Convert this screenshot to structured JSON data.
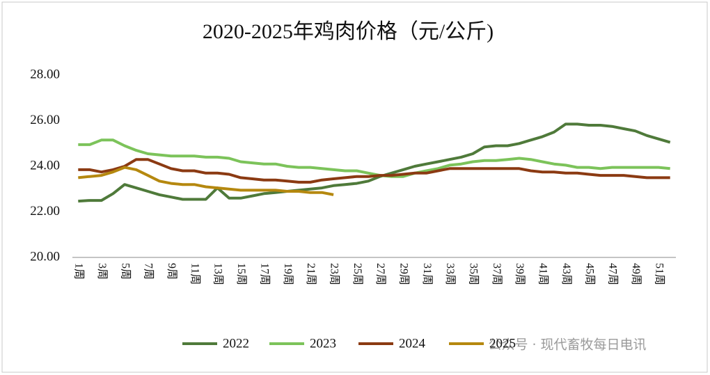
{
  "chart_data": {
    "type": "line",
    "title": "2020-2025年鸡肉价格（元/公斤)",
    "watermark": "公众号 · 现代畜牧每日电讯",
    "categories": [
      "1周",
      null,
      "3周",
      null,
      "5周",
      null,
      "7周",
      null,
      "9周",
      null,
      "11周",
      null,
      "13周",
      null,
      "15周",
      null,
      "17周",
      null,
      "19周",
      null,
      "21周",
      null,
      "23周",
      null,
      "25周",
      null,
      "27周",
      null,
      "29周",
      null,
      "31周",
      null,
      "33周",
      null,
      "35周",
      null,
      "37周",
      null,
      "39周",
      null,
      "41周",
      null,
      "43周",
      null,
      "45周",
      null,
      "47周",
      null,
      "49周",
      null,
      "51周",
      null
    ],
    "ylim": [
      20,
      28
    ],
    "yticks": [
      {
        "value": 20,
        "label": "20.00"
      },
      {
        "value": 22,
        "label": "22.00"
      },
      {
        "value": 24,
        "label": "24.00"
      },
      {
        "value": 26,
        "label": "26.00"
      },
      {
        "value": 28,
        "label": "28.00"
      }
    ],
    "legend": "bottom",
    "series": [
      {
        "name": "2022",
        "color": "#4f7a3a",
        "values": [
          22.47,
          22.5,
          22.5,
          22.8,
          23.2,
          23.05,
          22.9,
          22.75,
          22.65,
          22.55,
          22.55,
          22.55,
          23.05,
          22.6,
          22.6,
          22.7,
          22.8,
          22.85,
          22.9,
          22.95,
          23.0,
          23.05,
          23.15,
          23.2,
          23.25,
          23.35,
          23.55,
          23.7,
          23.85,
          24.0,
          24.1,
          24.2,
          24.3,
          24.4,
          24.55,
          24.85,
          24.9,
          24.9,
          25.0,
          25.15,
          25.3,
          25.5,
          25.85,
          25.85,
          25.8,
          25.8,
          25.75,
          25.65,
          25.55,
          25.35,
          25.2,
          25.05
        ]
      },
      {
        "name": "2023",
        "color": "#7cc35a",
        "values": [
          24.95,
          24.95,
          25.15,
          25.15,
          24.9,
          24.7,
          24.55,
          24.5,
          24.45,
          24.45,
          24.45,
          24.4,
          24.4,
          24.35,
          24.2,
          24.15,
          24.1,
          24.1,
          24.0,
          23.95,
          23.95,
          23.9,
          23.85,
          23.8,
          23.8,
          23.7,
          23.6,
          23.55,
          23.55,
          23.7,
          23.8,
          23.9,
          24.05,
          24.1,
          24.2,
          24.25,
          24.25,
          24.3,
          24.35,
          24.3,
          24.2,
          24.1,
          24.05,
          23.95,
          23.95,
          23.9,
          23.95,
          23.95,
          23.95,
          23.95,
          23.95,
          23.9
        ]
      },
      {
        "name": "2024",
        "color": "#8b3a12",
        "values": [
          23.85,
          23.85,
          23.75,
          23.85,
          24.0,
          24.3,
          24.3,
          24.1,
          23.9,
          23.8,
          23.8,
          23.7,
          23.7,
          23.65,
          23.5,
          23.45,
          23.4,
          23.4,
          23.35,
          23.3,
          23.3,
          23.4,
          23.45,
          23.5,
          23.55,
          23.55,
          23.6,
          23.6,
          23.65,
          23.7,
          23.7,
          23.8,
          23.9,
          23.9,
          23.9,
          23.9,
          23.9,
          23.9,
          23.9,
          23.8,
          23.75,
          23.75,
          23.7,
          23.7,
          23.65,
          23.6,
          23.6,
          23.6,
          23.55,
          23.5,
          23.5,
          23.5
        ]
      },
      {
        "name": "2025",
        "color": "#b5880f",
        "values": [
          23.5,
          23.55,
          23.6,
          23.75,
          23.95,
          23.85,
          23.6,
          23.35,
          23.25,
          23.2,
          23.2,
          23.1,
          23.05,
          23.0,
          22.95,
          22.95,
          22.95,
          22.95,
          22.9,
          22.9,
          22.85,
          22.85,
          22.75,
          null,
          null,
          null,
          null,
          null,
          null,
          null,
          null,
          null,
          null,
          null,
          null,
          null,
          null,
          null,
          null,
          null,
          null,
          null,
          null,
          null,
          null,
          null,
          null,
          null,
          null,
          null,
          null,
          null
        ]
      }
    ]
  }
}
